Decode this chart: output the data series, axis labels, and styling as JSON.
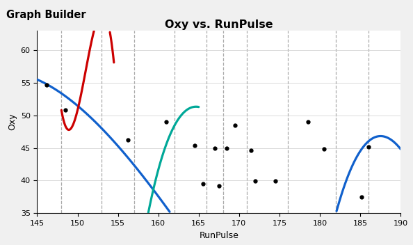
{
  "title": "Oxy vs. RunPulse",
  "xlabel": "RunPulse",
  "ylabel": "Oxy",
  "xlim": [
    145,
    190
  ],
  "ylim": [
    35,
    63
  ],
  "xticks": [
    145,
    150,
    155,
    160,
    165,
    170,
    175,
    180,
    185,
    190
  ],
  "yticks": [
    35,
    40,
    45,
    50,
    55,
    60
  ],
  "vlines_x": [
    148,
    153,
    157,
    162,
    166,
    168,
    171,
    176,
    182,
    186
  ],
  "data_points": [
    [
      146.2,
      54.7
    ],
    [
      148.5,
      50.8
    ],
    [
      156.2,
      46.2
    ],
    [
      161.0,
      49.0
    ],
    [
      164.5,
      45.4
    ],
    [
      165.5,
      39.5
    ],
    [
      167.0,
      45.0
    ],
    [
      167.5,
      39.2
    ],
    [
      168.5,
      45.0
    ],
    [
      169.5,
      48.5
    ],
    [
      171.5,
      44.6
    ],
    [
      172.0,
      39.9
    ],
    [
      174.5,
      39.9
    ],
    [
      178.5,
      49.0
    ],
    [
      180.5,
      44.8
    ],
    [
      185.2,
      37.5
    ],
    [
      186.0,
      45.2
    ]
  ],
  "header_text": "Graph Builder",
  "background_color": "#F0F0F0",
  "header_bg": "#D0D0D0",
  "plot_bg": "#FFFFFF",
  "lw": 2.3
}
